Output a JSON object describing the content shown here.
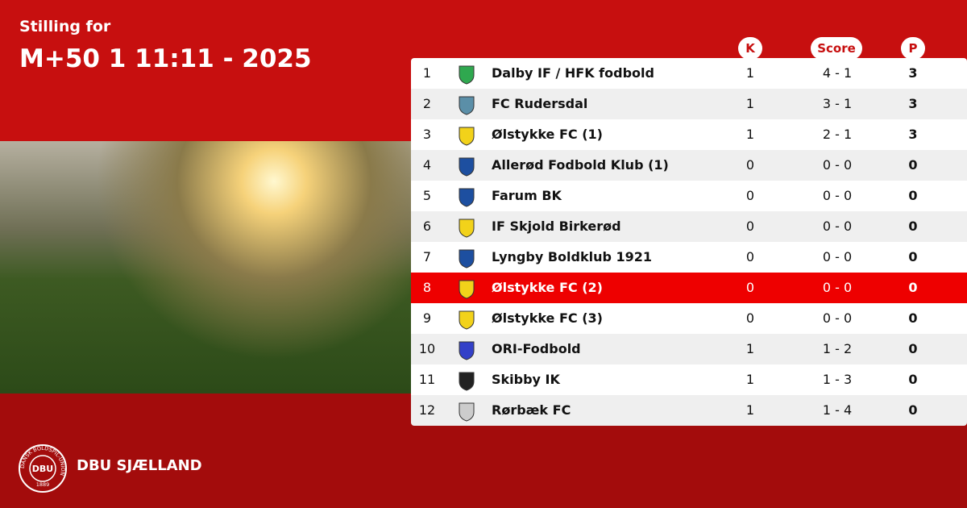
{
  "header": {
    "kicker": "Stilling for",
    "title": "M+50 1 11:11 - 2025"
  },
  "table": {
    "columns": [
      "K",
      "Score",
      "P"
    ],
    "highlighted_row": 7,
    "rows": [
      [
        1,
        "Dalby IF / HFK fodbold",
        1,
        "4 - 1",
        3
      ],
      [
        2,
        "FC Rudersdal",
        1,
        "3 - 1",
        3
      ],
      [
        3,
        "Ølstykke FC (1)",
        1,
        "2 - 1",
        3
      ],
      [
        4,
        "Allerød Fodbold Klub (1)",
        0,
        "0 - 0",
        0
      ],
      [
        5,
        "Farum BK",
        0,
        "0 - 0",
        0
      ],
      [
        6,
        "IF Skjold Birkerød",
        0,
        "0 - 0",
        0
      ],
      [
        7,
        "Lyngby Boldklub 1921",
        0,
        "0 - 0",
        0
      ],
      [
        8,
        "Ølstykke FC (2)",
        0,
        "0 - 0",
        0
      ],
      [
        9,
        "Ølstykke FC (3)",
        0,
        "0 - 0",
        0
      ],
      [
        10,
        "ORI-Fodbold",
        1,
        "1 - 2",
        0
      ],
      [
        11,
        "Skibby IK",
        1,
        "1 - 3",
        0
      ],
      [
        12,
        "Rørbæk FC",
        1,
        "1 - 4",
        0
      ]
    ]
  },
  "footer": {
    "logo": "DBU",
    "logo_ring": "DANSK BOLDSPIL-UNION",
    "logo_year": "1889",
    "brand": "DBU SJÆLLAND"
  }
}
